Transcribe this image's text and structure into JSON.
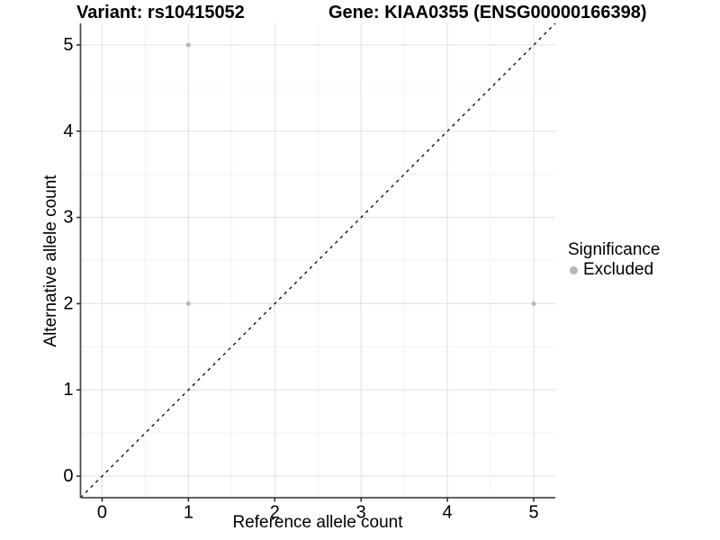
{
  "chart_data": {
    "type": "scatter",
    "title_left": "Variant: rs10415052",
    "title_right": "Gene: KIAA0355 (ENSG00000166398)",
    "xlabel": "Reference allele count",
    "ylabel": "Alternative allele count",
    "xlim": [
      -0.25,
      5.25
    ],
    "ylim": [
      -0.25,
      5.25
    ],
    "x_ticks": [
      0,
      1,
      2,
      3,
      4,
      5
    ],
    "y_ticks": [
      0,
      1,
      2,
      3,
      4,
      5
    ],
    "x_minor_ticks": [
      0.5,
      1.5,
      2.5,
      3.5,
      4.5
    ],
    "y_minor_ticks": [
      0.5,
      1.5,
      2.5,
      3.5,
      4.5
    ],
    "grid": "major and minor gridlines, no panel border",
    "identity_line": {
      "style": "dashed",
      "color": "#000000",
      "from": [
        -0.25,
        -0.25
      ],
      "to": [
        5.25,
        5.25
      ]
    },
    "series": [
      {
        "name": "Excluded",
        "color": "#b8b8b8",
        "points": [
          {
            "x": 1,
            "y": 5
          },
          {
            "x": 1,
            "y": 2
          },
          {
            "x": 5,
            "y": 2
          }
        ]
      }
    ],
    "legend": {
      "title": "Significance",
      "position": "right",
      "entries": [
        {
          "label": "Excluded",
          "color": "#b8b8b8"
        }
      ]
    }
  },
  "colors": {
    "background": "#ffffff",
    "grid_major": "#e4e4e4",
    "grid_minor": "#f2f2f2",
    "axis_line": "#4d4d4d",
    "tick_mark": "#333333",
    "point": "#b8b8b8",
    "identity_line": "#000000",
    "text": "#000000"
  }
}
